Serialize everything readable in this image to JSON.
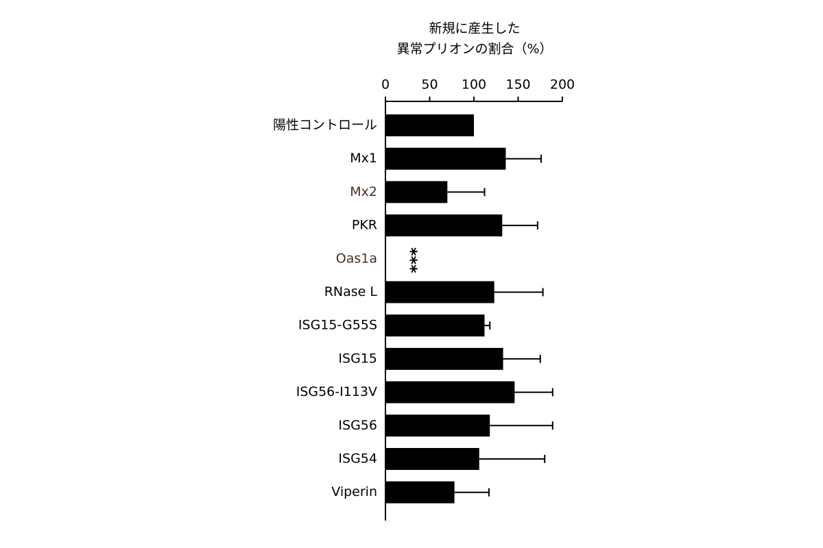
{
  "chart_data": {
    "type": "bar",
    "orientation": "horizontal",
    "title_lines": [
      "新規に産生した",
      "異常プリオンの割合（%）"
    ],
    "categories": [
      "陽性コントロール",
      "Mx1",
      "Mx2",
      "PKR",
      "Oas1a",
      "RNase L",
      "ISG15-G55S",
      "ISG15",
      "ISG56-I113V",
      "ISG56",
      "ISG54",
      "Viperin"
    ],
    "category_colors": [
      "#000000",
      "#000000",
      "#4a2e24",
      "#000000",
      "#4a2e24",
      "#000000",
      "#000000",
      "#000000",
      "#000000",
      "#000000",
      "#000000",
      "#000000"
    ],
    "values": [
      100,
      136,
      70,
      132,
      0,
      123,
      112,
      133,
      146,
      118,
      106,
      78
    ],
    "errors": [
      null,
      40,
      42,
      40,
      null,
      55,
      6,
      42,
      43,
      71,
      74,
      39
    ],
    "color": "#000000",
    "annotations": [
      {
        "text": "***"
      }
    ],
    "xlim": [
      0,
      200
    ],
    "xticks": [
      0,
      50,
      100,
      150,
      200
    ],
    "grid": false
  }
}
